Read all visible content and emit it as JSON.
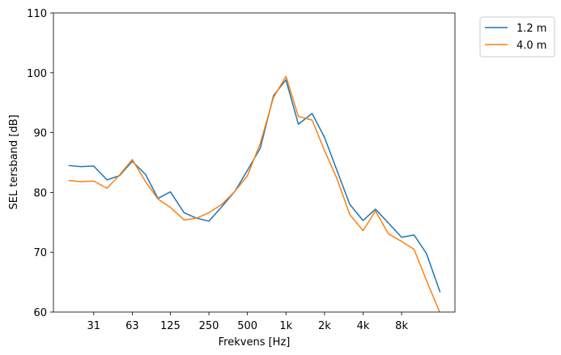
{
  "chart_data": {
    "type": "line",
    "xscale": "log",
    "xlabel": "Frekvens [Hz]",
    "ylabel": "SEL tersband [dB]",
    "ylim": [
      60,
      110
    ],
    "grid": false,
    "legend_position": "outside-top-right",
    "xticks": [
      {
        "value": 31.5,
        "label": "31"
      },
      {
        "value": 63,
        "label": "63"
      },
      {
        "value": 125,
        "label": "125"
      },
      {
        "value": 250,
        "label": "250"
      },
      {
        "value": 500,
        "label": "500"
      },
      {
        "value": 1000,
        "label": "1k"
      },
      {
        "value": 2000,
        "label": "2k"
      },
      {
        "value": 4000,
        "label": "4k"
      },
      {
        "value": 8000,
        "label": "8k"
      }
    ],
    "yticks": [
      60,
      70,
      80,
      90,
      100,
      110
    ],
    "x": [
      20,
      25,
      31.5,
      40,
      50,
      63,
      80,
      100,
      125,
      160,
      200,
      250,
      315,
      400,
      500,
      630,
      800,
      1000,
      1250,
      1600,
      2000,
      2500,
      3150,
      4000,
      5000,
      6300,
      8000,
      10000,
      12500,
      16000
    ],
    "series": [
      {
        "name": "1.2 m",
        "color": "#1f77b4",
        "values": [
          84.5,
          84.3,
          84.4,
          82.1,
          82.8,
          85.2,
          83.0,
          79.0,
          80.1,
          76.6,
          75.7,
          75.2,
          77.6,
          80.2,
          83.7,
          87.4,
          96.2,
          98.8,
          91.4,
          93.2,
          89.2,
          83.7,
          78.0,
          75.3,
          77.2,
          74.9,
          72.5,
          72.9,
          69.8,
          63.3
        ]
      },
      {
        "name": "4.0 m",
        "color": "#ff7f0e",
        "values": [
          82.0,
          81.8,
          81.9,
          80.7,
          82.9,
          85.5,
          81.8,
          78.9,
          77.5,
          75.4,
          75.7,
          76.6,
          78.0,
          80.2,
          82.8,
          88.2,
          95.9,
          99.4,
          92.7,
          92.1,
          87.0,
          82.3,
          76.3,
          73.6,
          76.9,
          73.1,
          71.8,
          70.5,
          65.3,
          59.8
        ]
      }
    ]
  }
}
